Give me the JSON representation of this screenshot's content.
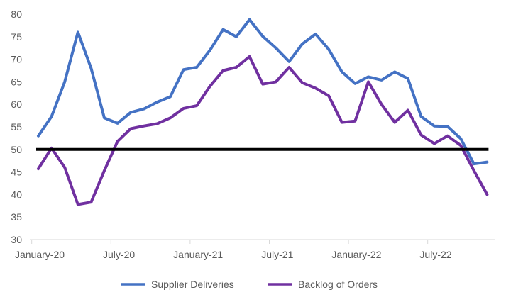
{
  "chart_data": {
    "type": "line",
    "title": "",
    "xlabel": "",
    "ylabel": "",
    "ylim": [
      30,
      80
    ],
    "yticks": [
      30,
      35,
      40,
      45,
      50,
      55,
      60,
      65,
      70,
      75,
      80
    ],
    "x_tick_labels": [
      {
        "index": 0,
        "label": "January-20"
      },
      {
        "index": 6,
        "label": "July-20"
      },
      {
        "index": 12,
        "label": "January-21"
      },
      {
        "index": 18,
        "label": "July-21"
      },
      {
        "index": 24,
        "label": "January-22"
      },
      {
        "index": 30,
        "label": "July-22"
      }
    ],
    "months": [
      "Jan-20",
      "Feb-20",
      "Mar-20",
      "Apr-20",
      "May-20",
      "Jun-20",
      "Jul-20",
      "Aug-20",
      "Sep-20",
      "Oct-20",
      "Nov-20",
      "Dec-20",
      "Jan-21",
      "Feb-21",
      "Mar-21",
      "Apr-21",
      "May-21",
      "Jun-21",
      "Jul-21",
      "Aug-21",
      "Sep-21",
      "Oct-21",
      "Nov-21",
      "Dec-21",
      "Jan-22",
      "Feb-22",
      "Mar-22",
      "Apr-22",
      "May-22",
      "Jun-22",
      "Jul-22",
      "Aug-22",
      "Sep-22",
      "Oct-22",
      "Nov-22"
    ],
    "series": [
      {
        "name": "Supplier Deliveries",
        "color": "#4472C4",
        "values": [
          53.0,
          57.3,
          65.0,
          76.0,
          68.0,
          57.0,
          55.8,
          58.2,
          59.0,
          60.5,
          61.7,
          67.7,
          68.2,
          72.0,
          76.6,
          75.0,
          78.8,
          75.1,
          72.5,
          69.5,
          73.4,
          75.6,
          72.2,
          67.2,
          64.6,
          66.1,
          65.4,
          67.2,
          65.7,
          57.3,
          55.2,
          55.1,
          52.4,
          46.8,
          47.2
        ]
      },
      {
        "name": "Backlog of Orders",
        "color": "#7030A0",
        "values": [
          45.7,
          50.3,
          46.0,
          37.8,
          38.3,
          45.3,
          51.8,
          54.6,
          55.2,
          55.7,
          57.0,
          59.1,
          59.7,
          64.0,
          67.5,
          68.2,
          70.6,
          64.5,
          65.0,
          68.2,
          64.8,
          63.6,
          61.9,
          56.0,
          56.3,
          65.0,
          60.0,
          56.0,
          58.7,
          53.2,
          51.3,
          53.0,
          50.9,
          45.3,
          40.0
        ]
      }
    ],
    "reference_line": {
      "value": 50,
      "color": "#000000"
    },
    "legend": {
      "placement": "bottom"
    }
  }
}
